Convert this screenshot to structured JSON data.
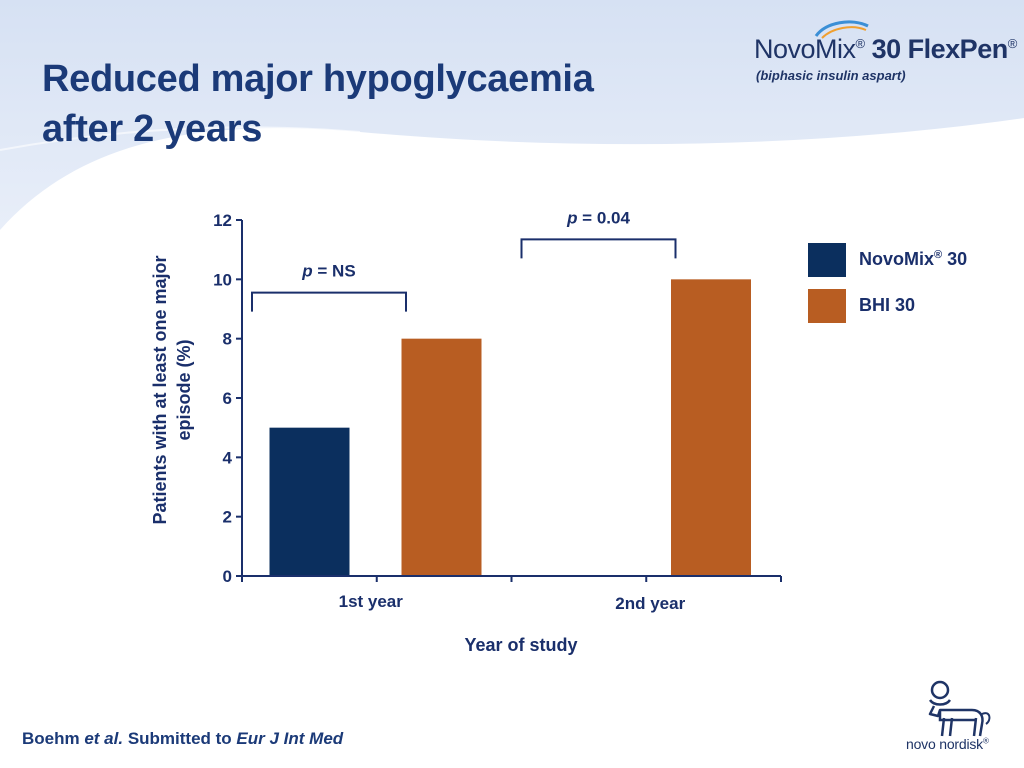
{
  "slide": {
    "title_line1": "Reduced major hypoglycaemia",
    "title_line2": "after 2 years"
  },
  "brand": {
    "name_part1": "NovoMix",
    "registered": "®",
    "name_part2": " 30 FlexPen",
    "registered2": "®",
    "subtitle": "(biphasic insulin aspart)"
  },
  "chart_data": {
    "type": "bar",
    "categories": [
      "1st year",
      "2nd year"
    ],
    "series": [
      {
        "name": "NovoMix® 30",
        "values": [
          5,
          0
        ],
        "color": "#0b2f5e"
      },
      {
        "name": "BHI 30",
        "values": [
          8,
          10
        ],
        "color": "#b85d22"
      }
    ],
    "ylabel": "Patients with at least one major episode (%)",
    "xlabel": "Year of study",
    "ylim": [
      0,
      12
    ],
    "yticks": [
      0,
      2,
      4,
      6,
      8,
      10,
      12
    ],
    "grid": false,
    "legend_position": "right",
    "annotations": [
      {
        "category": "1st year",
        "p_label": "p",
        "text": " = NS"
      },
      {
        "category": "2nd year",
        "p_label": "p",
        "text": " = 0.04"
      }
    ]
  },
  "legend": {
    "item1_name": "NovoMix",
    "item1_sup": "®",
    "item1_suffix": " 30",
    "item2_name": "BHI 30",
    "item1_color": "#0b2f5e",
    "item2_color": "#b85d22"
  },
  "citation": {
    "author": "Boehm ",
    "etal": "et al.",
    "middle": " Submitted to ",
    "journal": "Eur J Int Med"
  },
  "logo": {
    "text": "novo nordisk",
    "registered": "®"
  },
  "colors": {
    "title": "#1b3a78",
    "text": "#1a2f6b",
    "novomix": "#0b2f5e",
    "bhi": "#b85d22"
  }
}
